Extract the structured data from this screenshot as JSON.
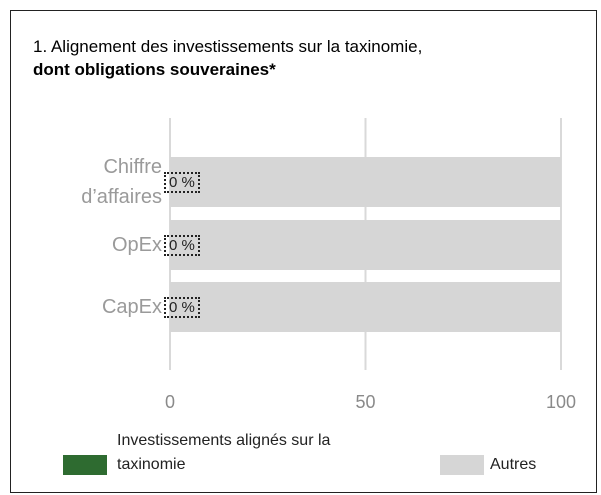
{
  "chart_data": {
    "type": "stacked_barh",
    "title": "1. Alignement des investissements sur la taxinomie,",
    "subtitle": "dont obligations souveraines*",
    "categories": [
      "Chiffre d’affaires",
      "OpEx",
      "CapEx"
    ],
    "series": [
      {
        "name": "Investissements alignés sur la taxinomie",
        "color": "#2e6b30",
        "values": [
          0,
          0,
          0
        ],
        "value_labels": [
          "0 %",
          "0 %",
          "0 %"
        ]
      },
      {
        "name": "Autres",
        "color": "#d6d6d6",
        "values": [
          100,
          100,
          100
        ]
      }
    ],
    "xlim": [
      0,
      100
    ],
    "xticks": [
      0,
      50,
      100
    ],
    "grid": true
  }
}
